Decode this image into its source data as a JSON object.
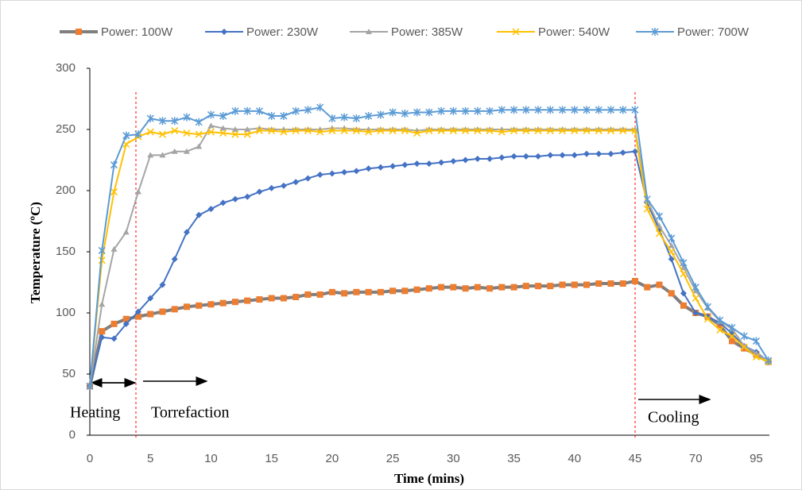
{
  "chart_data": {
    "type": "line",
    "x_label": "Time (mins)",
    "y_label": "Temperature (ºC)",
    "annotations": [
      "Heating",
      "Torrefaction",
      "Cooling"
    ],
    "categories": [
      0,
      null,
      null,
      null,
      null,
      5,
      null,
      null,
      null,
      null,
      10,
      null,
      null,
      null,
      null,
      15,
      null,
      null,
      null,
      null,
      20,
      null,
      null,
      null,
      null,
      25,
      null,
      null,
      null,
      null,
      30,
      null,
      null,
      null,
      null,
      35,
      null,
      null,
      null,
      null,
      40,
      null,
      null,
      null,
      null,
      45,
      null,
      null,
      null,
      null,
      70,
      null,
      null,
      null,
      null,
      95,
      null
    ],
    "ylim": [
      0,
      300
    ],
    "yticks": [
      0,
      50,
      100,
      150,
      200,
      250,
      300
    ],
    "legend": "top",
    "series": [
      {
        "name": "Power: 100W",
        "color": "#ed7d31",
        "line_color": "#7f7f7f",
        "marker": "square",
        "values": [
          40,
          85,
          91,
          95,
          97,
          99,
          101,
          103,
          105,
          106,
          107,
          108,
          109,
          110,
          111,
          112,
          112,
          113,
          115,
          115,
          117,
          116,
          117,
          117,
          117,
          118,
          118,
          119,
          120,
          121,
          121,
          120,
          121,
          120,
          121,
          121,
          122,
          122,
          122,
          123,
          123,
          123,
          124,
          124,
          124,
          126,
          121,
          123,
          116,
          106,
          100,
          97,
          90,
          77,
          71,
          66,
          60
        ]
      },
      {
        "name": "Power: 230W",
        "color": "#4472c4",
        "line_color": "#4472c4",
        "marker": "diamond",
        "values": [
          40,
          80,
          79,
          91,
          101,
          112,
          123,
          144,
          166,
          180,
          185,
          190,
          193,
          195,
          199,
          202,
          204,
          207,
          210,
          213,
          214,
          215,
          216,
          218,
          219,
          220,
          221,
          222,
          222,
          223,
          224,
          225,
          226,
          226,
          227,
          228,
          228,
          228,
          229,
          229,
          229,
          230,
          230,
          230,
          231,
          232,
          190,
          168,
          144,
          116,
          100,
          97,
          92,
          83,
          73,
          68,
          60
        ]
      },
      {
        "name": "Power: 385W",
        "color": "#a5a5a5",
        "line_color": "#a5a5a5",
        "marker": "triangle",
        "values": [
          40,
          107,
          152,
          166,
          199,
          229,
          229,
          232,
          232,
          236,
          253,
          251,
          250,
          250,
          251,
          250,
          250,
          250,
          250,
          250,
          251,
          251,
          250,
          250,
          250,
          250,
          250,
          249,
          250,
          250,
          250,
          250,
          250,
          250,
          250,
          250,
          250,
          250,
          250,
          250,
          250,
          250,
          250,
          250,
          250,
          250,
          192,
          171,
          155,
          137,
          118,
          104,
          93,
          87,
          73,
          67,
          60
        ]
      },
      {
        "name": "Power: 540W",
        "color": "#ffc000",
        "line_color": "#ffc000",
        "marker": "x",
        "values": [
          40,
          143,
          199,
          238,
          244,
          248,
          246,
          249,
          247,
          246,
          248,
          247,
          246,
          246,
          249,
          249,
          248,
          249,
          249,
          248,
          249,
          249,
          249,
          248,
          249,
          249,
          249,
          247,
          249,
          249,
          249,
          249,
          249,
          249,
          248,
          249,
          249,
          249,
          249,
          249,
          249,
          249,
          249,
          249,
          249,
          249,
          185,
          165,
          150,
          132,
          112,
          95,
          86,
          81,
          72,
          64,
          60
        ]
      },
      {
        "name": "Power: 700W",
        "color": "#5b9bd5",
        "line_color": "#5b9bd5",
        "marker": "star",
        "values": [
          40,
          151,
          221,
          245,
          246,
          259,
          257,
          257,
          260,
          256,
          262,
          261,
          265,
          265,
          265,
          261,
          261,
          265,
          266,
          268,
          259,
          260,
          259,
          261,
          262,
          264,
          263,
          264,
          264,
          265,
          265,
          265,
          265,
          265,
          266,
          266,
          266,
          266,
          266,
          266,
          266,
          266,
          266,
          266,
          266,
          266,
          193,
          179,
          161,
          141,
          121,
          105,
          94,
          88,
          81,
          77,
          61
        ]
      }
    ]
  }
}
